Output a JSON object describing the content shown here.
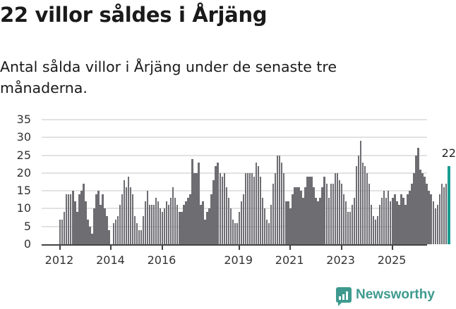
{
  "header": {
    "title": "22 villor såldes i Årjäng",
    "subtitle": "Antal sålda villor i Årjäng under de senaste tre månaderna."
  },
  "brand": {
    "name": "Newsworthy",
    "color": "#3e9a8f"
  },
  "colors": {
    "bar": "#6e6d72",
    "highlight": "#1a9c93",
    "grid": "#e2e2e2"
  },
  "chart_data": {
    "type": "bar",
    "title": "22 villor såldes i Årjäng",
    "subtitle": "Antal sålda villor i Årjäng under de senaste tre månaderna.",
    "xlabel": "",
    "ylabel": "",
    "ylim": [
      0,
      35
    ],
    "yticks": [
      0,
      5,
      10,
      15,
      20,
      25,
      30,
      35
    ],
    "xticks": [
      "2012",
      "2014",
      "2016",
      "2019",
      "2021",
      "2023",
      "2025"
    ],
    "grid": true,
    "legend": "none",
    "start": "2012-01",
    "frequency": "monthly (rolling 3-month sum)",
    "annotation": {
      "label": "22",
      "point": "last"
    },
    "values": [
      7,
      7,
      9,
      14,
      14,
      14,
      15,
      12,
      9,
      14,
      15,
      17,
      12,
      7,
      5,
      3,
      10,
      14,
      15,
      11,
      14,
      10,
      8,
      4,
      0,
      6,
      7,
      8,
      11,
      14,
      18,
      16,
      19,
      16,
      14,
      8,
      6,
      4,
      4,
      8,
      12,
      15,
      11,
      11,
      11,
      13,
      12,
      10,
      9,
      10,
      12,
      11,
      13,
      16,
      13,
      11,
      9,
      9,
      11,
      12,
      13,
      14,
      24,
      20,
      20,
      23,
      11,
      12,
      7,
      9,
      10,
      14,
      18,
      22,
      23,
      20,
      19,
      20,
      16,
      13,
      10,
      7,
      6,
      6,
      9,
      12,
      14,
      20,
      20,
      20,
      20,
      19,
      23,
      22,
      19,
      13,
      10,
      7,
      6,
      11,
      17,
      20,
      25,
      25,
      23,
      20,
      12,
      12,
      10,
      14,
      16,
      16,
      16,
      15,
      13,
      16,
      19,
      19,
      19,
      16,
      13,
      12,
      13,
      16,
      19,
      17,
      13,
      17,
      17,
      20,
      20,
      18,
      17,
      14,
      12,
      9,
      9,
      11,
      13,
      22,
      25,
      29,
      23,
      22,
      20,
      17,
      11,
      8,
      7,
      8,
      11,
      13,
      15,
      13,
      15,
      12,
      13,
      14,
      12,
      11,
      14,
      13,
      11,
      14,
      15,
      17,
      20,
      25,
      27,
      21,
      20,
      19,
      17,
      15,
      14,
      12,
      10,
      11,
      14,
      17,
      16,
      17,
      22
    ]
  }
}
